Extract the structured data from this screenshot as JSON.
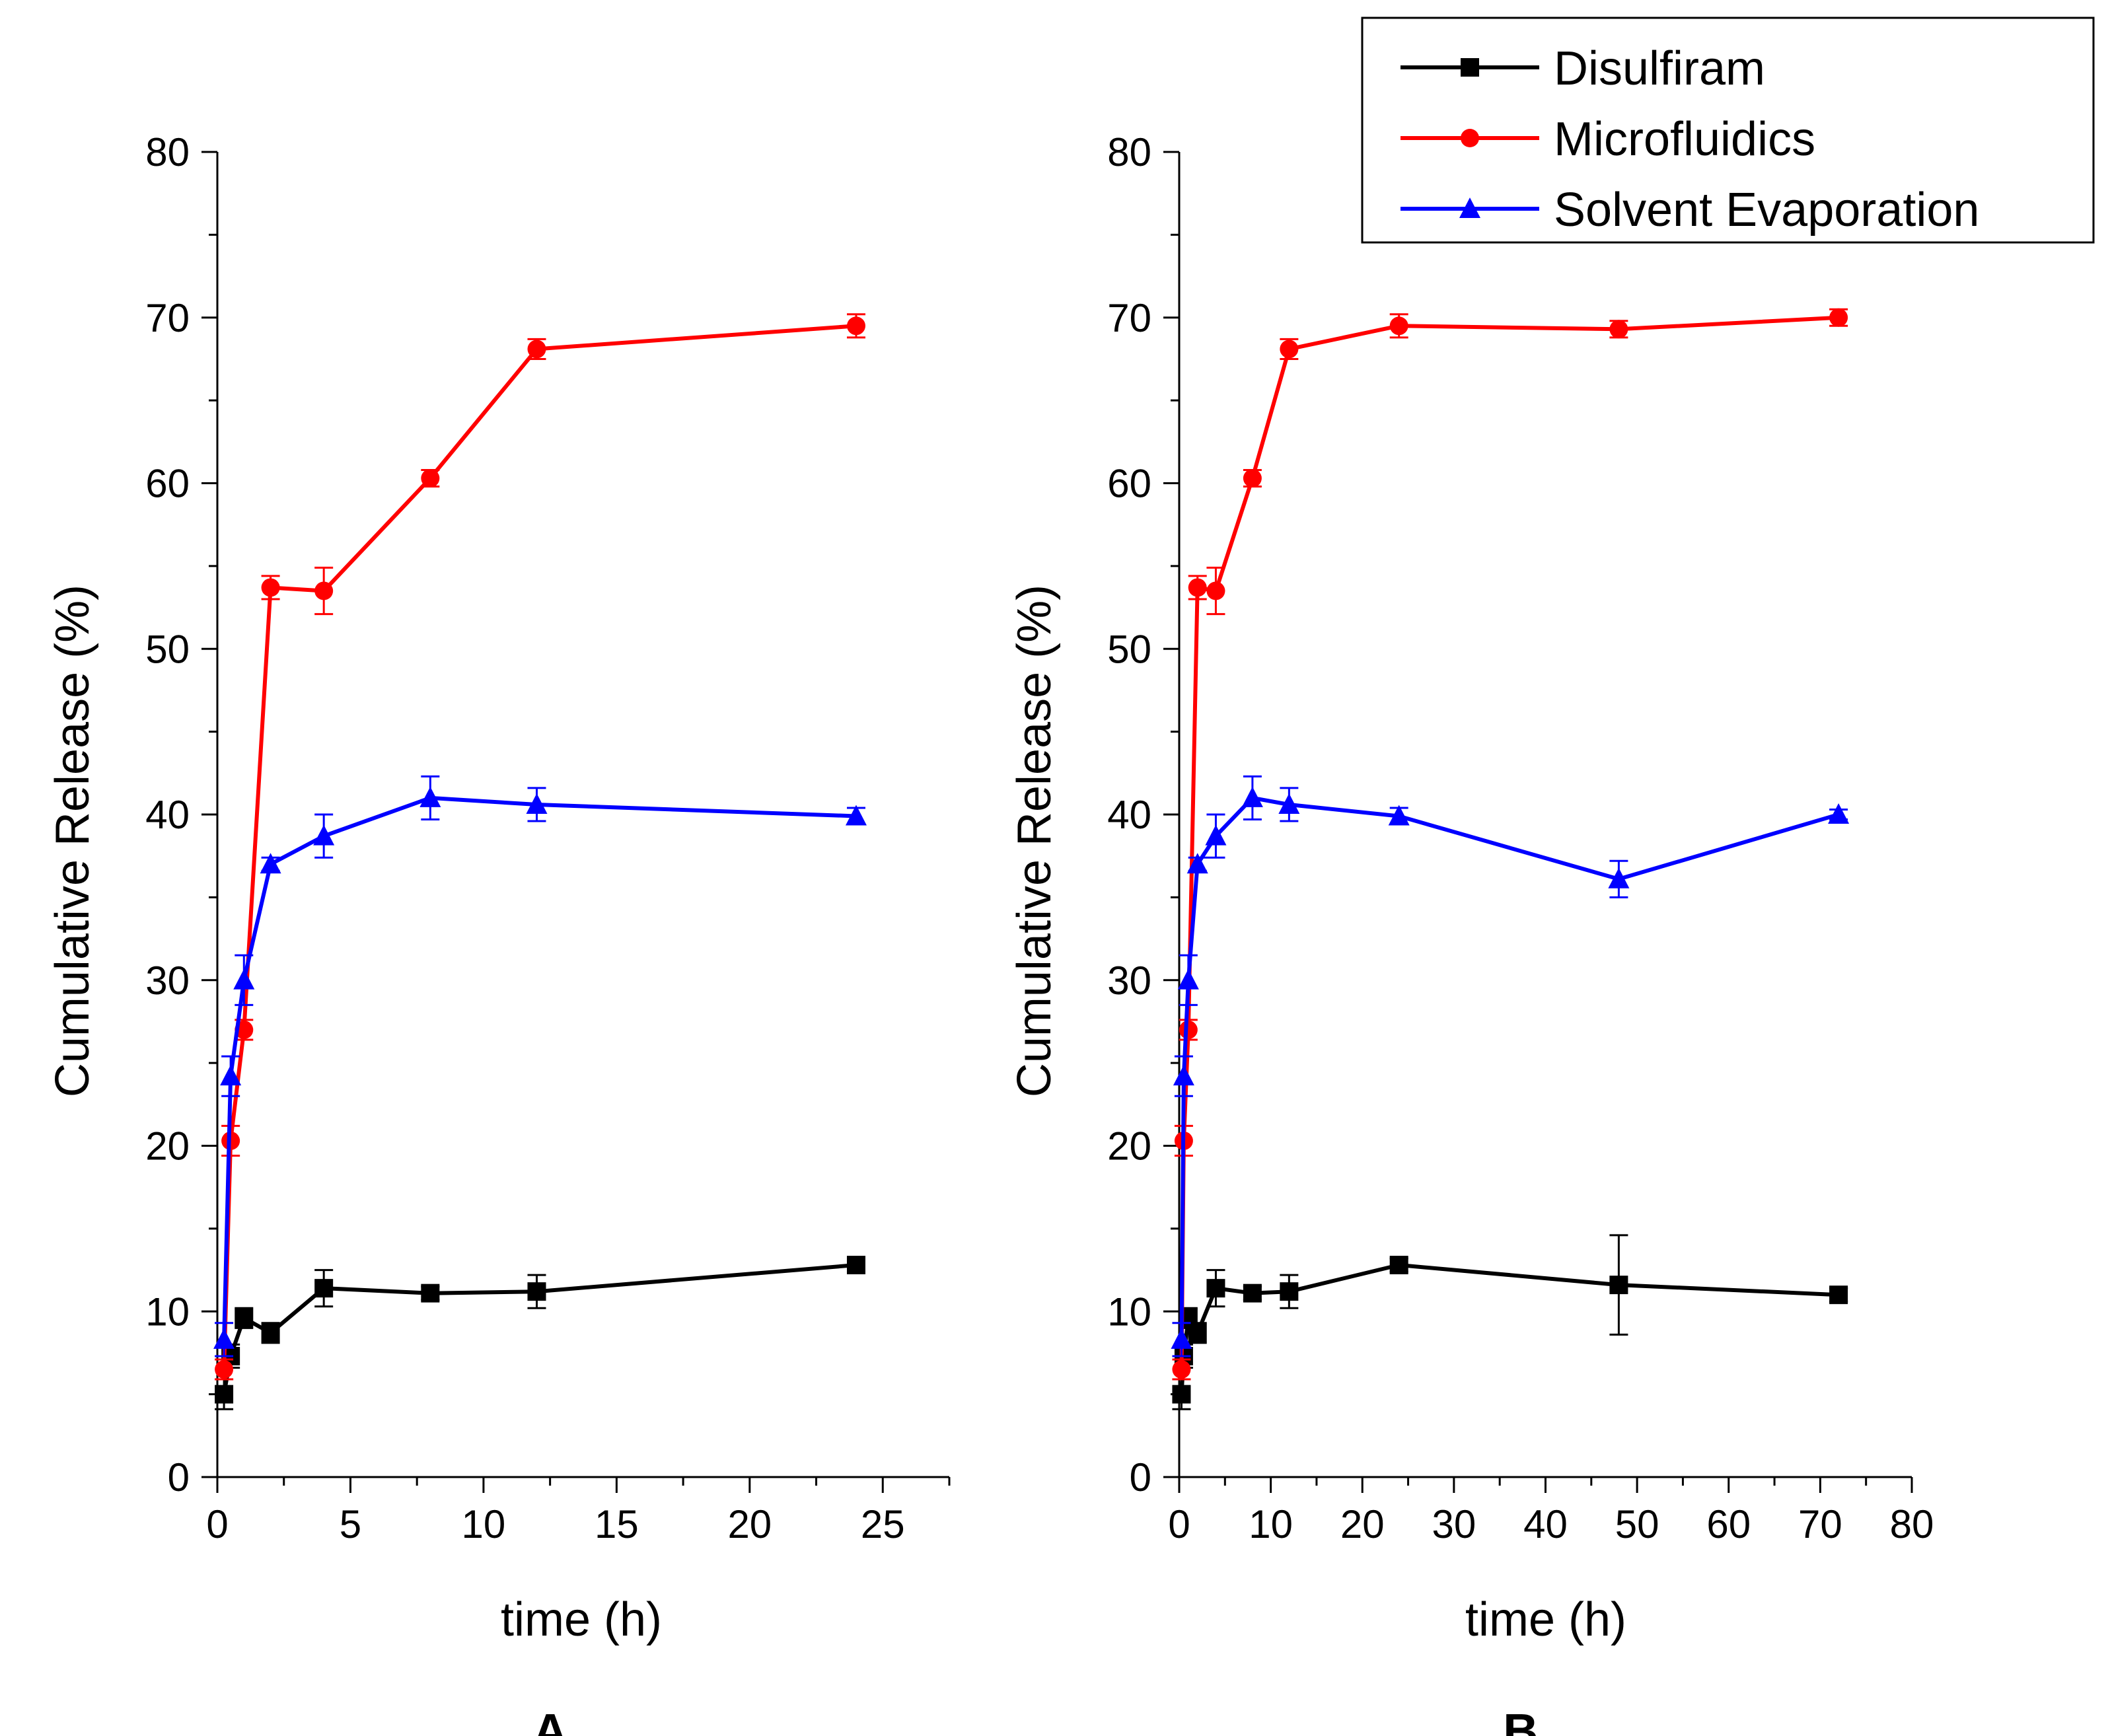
{
  "chart_data": {
    "legend": {
      "placement": "top-right",
      "entries": [
        "Disulfiram",
        "Microfluidics",
        "Solvent Evaporation"
      ]
    },
    "panels": [
      {
        "type": "line",
        "label": "A",
        "xlabel": "time (h)",
        "ylabel": "Cumulative Release (%)",
        "xlim": [
          0,
          27.5
        ],
        "ylim": [
          0,
          80
        ],
        "xticks": [
          0,
          5,
          10,
          15,
          20,
          25
        ],
        "yticks": [
          0,
          10,
          20,
          30,
          40,
          50,
          60,
          70,
          80
        ],
        "series": [
          {
            "name": "Disulfiram",
            "color": "#000000",
            "marker": "square",
            "x": [
              0.25,
              0.5,
              1,
              2,
              4,
              8,
              12,
              24
            ],
            "y": [
              5.0,
              7.3,
              9.6,
              8.7,
              11.4,
              11.1,
              11.2,
              12.8
            ],
            "err": [
              0.9,
              0.7,
              0.6,
              0.6,
              1.1,
              0.4,
              1.0,
              0.4
            ]
          },
          {
            "name": "Microfluidics",
            "color": "#ff0000",
            "marker": "circle",
            "x": [
              0.25,
              0.5,
              1,
              2,
              4,
              8,
              12,
              24
            ],
            "y": [
              6.5,
              20.3,
              27.0,
              53.7,
              53.5,
              60.3,
              68.1,
              69.5
            ],
            "err": [
              0.6,
              0.9,
              0.6,
              0.7,
              1.4,
              0.5,
              0.6,
              0.7
            ]
          },
          {
            "name": "Solvent Evaporation",
            "color": "#0000ff",
            "marker": "triangle",
            "x": [
              0.25,
              0.5,
              1,
              2,
              4,
              8,
              12,
              24
            ],
            "y": [
              8.3,
              24.2,
              30.0,
              37.0,
              38.7,
              41.0,
              40.6,
              39.9
            ],
            "err": [
              1.0,
              1.2,
              1.5,
              0.4,
              1.3,
              1.3,
              1.0,
              0.5
            ]
          }
        ]
      },
      {
        "type": "line",
        "label": "B",
        "xlabel": "time (h)",
        "ylabel": "Cumulative Release (%)",
        "xlim": [
          0,
          80
        ],
        "ylim": [
          0,
          80
        ],
        "xticks": [
          0,
          10,
          20,
          30,
          40,
          50,
          60,
          70,
          80
        ],
        "yticks": [
          0,
          10,
          20,
          30,
          40,
          50,
          60,
          70,
          80
        ],
        "series": [
          {
            "name": "Disulfiram",
            "color": "#000000",
            "marker": "square",
            "x": [
              0.25,
              0.5,
              1,
              2,
              4,
              8,
              12,
              24,
              48,
              72
            ],
            "y": [
              5.0,
              7.3,
              9.6,
              8.7,
              11.4,
              11.1,
              11.2,
              12.8,
              11.6,
              11.0
            ],
            "err": [
              0.9,
              0.7,
              0.6,
              0.6,
              1.1,
              0.4,
              1.0,
              0.4,
              3.0,
              0.4
            ]
          },
          {
            "name": "Microfluidics",
            "color": "#ff0000",
            "marker": "circle",
            "x": [
              0.25,
              0.5,
              1,
              2,
              4,
              8,
              12,
              24,
              48,
              72
            ],
            "y": [
              6.5,
              20.3,
              27.0,
              53.7,
              53.5,
              60.3,
              68.1,
              69.5,
              69.3,
              70.0
            ],
            "err": [
              0.6,
              0.9,
              0.6,
              0.7,
              1.4,
              0.5,
              0.6,
              0.7,
              0.5,
              0.5
            ]
          },
          {
            "name": "Solvent Evaporation",
            "color": "#0000ff",
            "marker": "triangle",
            "x": [
              0.25,
              0.5,
              1,
              2,
              4,
              8,
              12,
              24,
              48,
              72
            ],
            "y": [
              8.3,
              24.2,
              30.0,
              37.0,
              38.7,
              41.0,
              40.6,
              39.9,
              36.1,
              40.0
            ],
            "err": [
              1.0,
              1.2,
              1.5,
              0.4,
              1.3,
              1.3,
              1.0,
              0.5,
              1.1,
              0.3
            ]
          }
        ]
      }
    ]
  }
}
